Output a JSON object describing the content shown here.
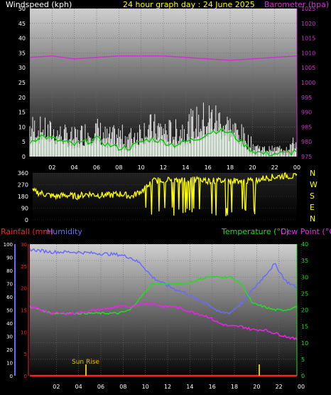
{
  "header": {
    "windspeed_label": "Windspeed (kph)",
    "title": "24 hour graph day : 24 June 2025",
    "barometer_label": "Barometer (hpa)"
  },
  "colors": {
    "background": "#000000",
    "wind": "#ffffff",
    "gust": "#00cc00",
    "gust_fill": "#bfffbf",
    "barometer": "#cc33cc",
    "direction": "#ffff00",
    "humidity": "#6a6aff",
    "temperature": "#22dd22",
    "dewpoint": "#ee22ee",
    "rainfall": "#ff2222",
    "title": "#ffff00"
  },
  "x_ticks": [
    "02",
    "04",
    "06",
    "08",
    "10",
    "12",
    "14",
    "16",
    "18",
    "20",
    "22",
    "00"
  ],
  "direction_letters": [
    "N",
    "W",
    "S",
    "E",
    "N"
  ],
  "bottom_header": {
    "rainfall_label": "Rainfall (mm)",
    "humidity_label": "Humidity",
    "temperature_label": "Temperature (°C)",
    "dewpoint_label": "Dew Point (°C)"
  },
  "sunrise_label": "Sun Rise",
  "chart_data": [
    {
      "type": "line",
      "title": "24 hour graph day : 24 June 2025",
      "ylabel": "Windspeed (kph)",
      "y2label": "Barometer (hpa)",
      "ylim": [
        0,
        50
      ],
      "y2lim": [
        975,
        1025
      ],
      "yticks": [
        "0",
        "5",
        "10",
        "15",
        "20",
        "25",
        "30",
        "35",
        "40",
        "45",
        "50"
      ],
      "y2ticks": [
        "975",
        "980",
        "985",
        "990",
        "995",
        "1000",
        "1005",
        "1010",
        "1015",
        "1020",
        "1025"
      ],
      "xlim": [
        0,
        24
      ],
      "grid": true,
      "series": [
        {
          "name": "Windspeed (kph)",
          "axis": "left",
          "x": [
            0,
            1,
            2,
            3,
            4,
            5,
            6,
            7,
            8,
            9,
            10,
            11,
            12,
            13,
            14,
            15,
            16,
            17,
            18,
            19,
            20,
            21,
            22,
            23,
            24
          ],
          "values": [
            12,
            11,
            10,
            9,
            8,
            10,
            11,
            8,
            9,
            8,
            11,
            12,
            11,
            10,
            12,
            14,
            16,
            15,
            12,
            9,
            5,
            3,
            3,
            4,
            6
          ]
        },
        {
          "name": "Gust",
          "axis": "left",
          "x": [
            0,
            1,
            2,
            3,
            4,
            5,
            6,
            7,
            8,
            9,
            10,
            11,
            12,
            13,
            14,
            15,
            16,
            17,
            18,
            19,
            20,
            21,
            22,
            23,
            24
          ],
          "values": [
            5,
            7,
            6,
            5,
            4,
            5,
            6,
            4,
            3,
            3,
            5,
            6,
            5,
            4,
            5,
            6,
            8,
            9,
            8,
            5,
            2,
            1,
            1,
            1,
            2
          ]
        },
        {
          "name": "Barometer (hpa)",
          "axis": "right",
          "x": [
            0,
            2,
            4,
            6,
            8,
            10,
            12,
            14,
            16,
            18,
            20,
            22,
            24
          ],
          "values": [
            1008.5,
            1009,
            1008,
            1008.5,
            1009,
            1009,
            1009,
            1008.5,
            1008,
            1007.5,
            1008,
            1008.5,
            1009
          ]
        }
      ]
    },
    {
      "type": "line",
      "yticks": [
        "0",
        "90",
        "180",
        "270",
        "360"
      ],
      "ylim": [
        0,
        360
      ],
      "xlim": [
        0,
        24
      ],
      "series": [
        {
          "name": "Wind Direction",
          "x": [
            0,
            1,
            2,
            3,
            4,
            5,
            6,
            7,
            8,
            9,
            10,
            11,
            12,
            13,
            14,
            15,
            16,
            17,
            18,
            19,
            20,
            21,
            22,
            23,
            24
          ],
          "values": [
            220,
            200,
            180,
            190,
            180,
            200,
            190,
            190,
            200,
            180,
            230,
            300,
            310,
            300,
            310,
            310,
            300,
            300,
            300,
            300,
            300,
            320,
            330,
            340,
            330
          ]
        }
      ]
    },
    {
      "type": "line",
      "ylabel": "Rainfall (mm)",
      "y2label": "Temperature (°C)",
      "yticks_humidity": [
        "0",
        "10",
        "20",
        "30",
        "40",
        "50",
        "60",
        "70",
        "80",
        "90",
        "100"
      ],
      "yticks_rain": [
        "0",
        "5",
        "10",
        "15",
        "20",
        "25",
        "30"
      ],
      "y2ticks": [
        "0",
        "5",
        "10",
        "15",
        "20",
        "25",
        "30",
        "35",
        "40"
      ],
      "humidity_lim": [
        0,
        100
      ],
      "rain_lim": [
        0,
        30
      ],
      "temp_lim": [
        0,
        40
      ],
      "xlim": [
        0,
        24
      ],
      "series": [
        {
          "name": "Humidity",
          "axis": "humidity",
          "x": [
            0,
            1,
            2,
            4,
            6,
            8,
            9,
            10,
            11,
            12,
            13,
            14,
            15,
            16,
            17,
            18,
            19,
            20,
            21,
            22,
            23,
            24
          ],
          "values": [
            96,
            95,
            94,
            94,
            93,
            92,
            90,
            85,
            75,
            70,
            66,
            63,
            58,
            55,
            48,
            48,
            55,
            65,
            75,
            85,
            72,
            67
          ]
        },
        {
          "name": "Temperature (°C)",
          "axis": "temp",
          "x": [
            0,
            1,
            2,
            4,
            6,
            8,
            9,
            10,
            11,
            12,
            13,
            14,
            15,
            16,
            17,
            18,
            19,
            20,
            21,
            22,
            23,
            24
          ],
          "values": [
            21,
            20,
            19,
            19,
            19,
            19,
            20,
            24,
            28,
            28,
            28,
            28,
            29,
            30,
            30,
            30,
            28,
            22,
            21,
            20,
            20,
            21
          ]
        },
        {
          "name": "Dew Point (°C)",
          "axis": "temp",
          "x": [
            0,
            1,
            2,
            4,
            6,
            8,
            9,
            10,
            11,
            12,
            13,
            14,
            15,
            16,
            17,
            18,
            19,
            20,
            21,
            22,
            23,
            24
          ],
          "values": [
            21,
            20,
            19,
            19,
            20,
            21,
            21,
            22,
            22,
            21,
            21,
            20,
            19,
            18,
            16,
            15,
            15,
            14,
            14,
            13,
            12,
            11
          ]
        },
        {
          "name": "Rainfall (mm)",
          "axis": "rain",
          "x": [
            0,
            24
          ],
          "values": [
            0,
            0
          ]
        }
      ]
    }
  ]
}
